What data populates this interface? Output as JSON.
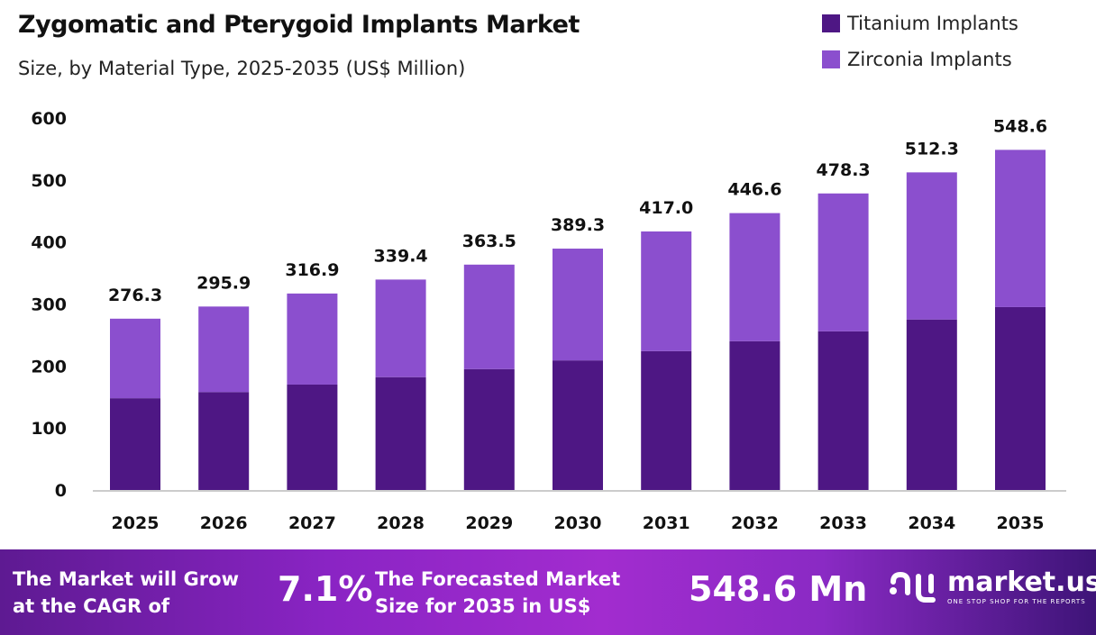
{
  "chart_data": {
    "type": "bar",
    "stacked": true,
    "title": "Zygomatic and Pterygoid Implants Market",
    "subtitle": "Size, by Material Type, 2025-2035 (US$ Million)",
    "categories": [
      "2025",
      "2026",
      "2027",
      "2028",
      "2029",
      "2030",
      "2031",
      "2032",
      "2033",
      "2034",
      "2035"
    ],
    "series": [
      {
        "name": "Titanium Implants",
        "color": "#4e1784",
        "values": [
          148,
          158,
          170,
          182,
          195,
          209,
          224,
          240,
          256,
          275,
          295
        ]
      },
      {
        "name": "Zirconia Implants",
        "color": "#8b4fce",
        "values": [
          128.3,
          137.9,
          146.9,
          157.4,
          168.5,
          180.3,
          193.0,
          206.6,
          222.3,
          237.3,
          253.6
        ]
      }
    ],
    "totals": [
      "276.3",
      "295.9",
      "316.9",
      "339.4",
      "363.5",
      "389.3",
      "417.0",
      "446.6",
      "478.3",
      "512.3",
      "548.6"
    ],
    "total_values": [
      276.3,
      295.9,
      316.9,
      339.4,
      363.5,
      389.3,
      417.0,
      446.6,
      478.3,
      512.3,
      548.6
    ],
    "ylim": [
      0,
      600
    ],
    "yticks": [
      "0",
      "100",
      "200",
      "300",
      "400",
      "500",
      "600"
    ],
    "grid": false,
    "legend_position": "top-right"
  },
  "footer": {
    "cagr_label_line1": "The Market will Grow",
    "cagr_label_line2": "at the CAGR of",
    "cagr_value": "7.1%",
    "forecast_label_line1": "The Forecasted Market",
    "forecast_label_line2": "Size for 2035 in US$",
    "forecast_value": "548.6 Mn",
    "logo_text": "market.us",
    "logo_tagline": "ONE STOP SHOP FOR THE REPORTS"
  }
}
